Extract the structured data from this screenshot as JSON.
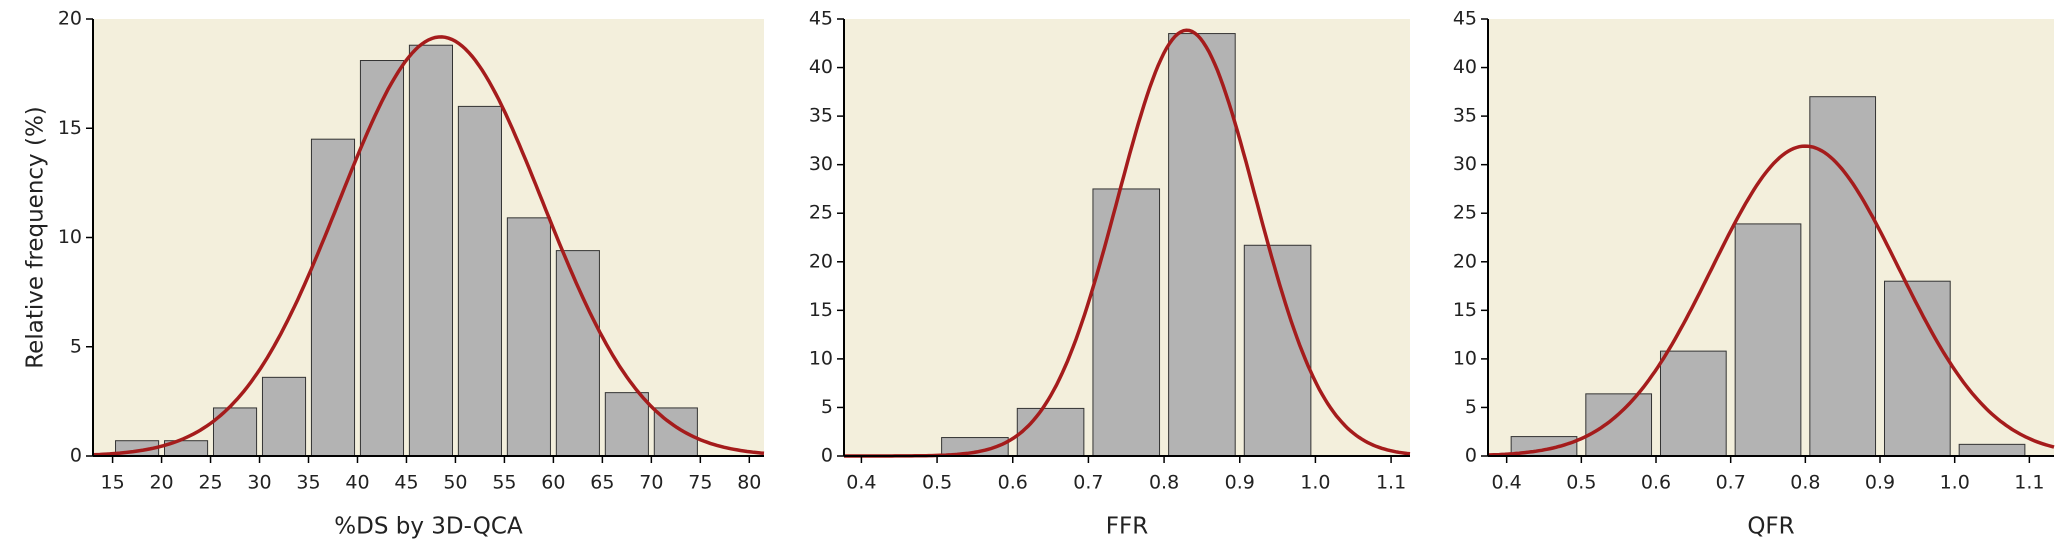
{
  "chart_data": [
    {
      "type": "histogram",
      "y_label": "Relative frequency (%)",
      "x_label": "%DS by 3D-QCA",
      "bins": [
        15,
        20,
        25,
        30,
        35,
        40,
        45,
        50,
        55,
        60,
        65,
        70,
        75
      ],
      "values": [
        0.7,
        0.7,
        2.2,
        3.6,
        14.5,
        18.1,
        18.8,
        16.0,
        10.9,
        9.4,
        2.9,
        2.2
      ],
      "color": "#b3b3b3",
      "fit": {
        "mean": 48.5,
        "sd": 10.4,
        "color": "#a51c1c"
      },
      "xlim": [
        13,
        81.5
      ],
      "xticks": [
        15,
        20,
        25,
        30,
        35,
        40,
        45,
        50,
        55,
        60,
        65,
        70,
        75,
        80
      ],
      "ylim": [
        0,
        20
      ],
      "yticks": [
        0,
        5,
        10,
        15,
        20
      ]
    },
    {
      "type": "histogram",
      "x_label": "FFR",
      "bins": [
        0.5,
        0.6,
        0.7,
        0.8,
        0.9,
        1.0
      ],
      "values": [
        1.9,
        4.9,
        27.5,
        43.5,
        21.7
      ],
      "color": "#b3b3b3",
      "fit": {
        "mean": 0.83,
        "sd": 0.091,
        "color": "#a51c1c"
      },
      "xlim": [
        0.377,
        1.125
      ],
      "xticks": [
        0.4,
        0.5,
        0.6,
        0.7,
        0.8,
        0.9,
        {
          "value": 1,
          "label": "1.0"
        },
        1.1
      ],
      "ylim": [
        0,
        45
      ],
      "yticks": [
        0,
        5,
        10,
        15,
        20,
        25,
        30,
        35,
        40,
        45
      ]
    },
    {
      "type": "histogram",
      "x_label": "QFR",
      "bins": [
        0.4,
        0.5,
        0.6,
        0.7,
        0.8,
        0.9,
        1.0,
        1.1
      ],
      "values": [
        2.0,
        6.4,
        10.8,
        23.9,
        37.0,
        18.0,
        1.2
      ],
      "color": "#b3b3b3",
      "fit": {
        "mean": 0.8,
        "sd": 0.125,
        "color": "#a51c1c"
      },
      "xlim": [
        0.375,
        1.133
      ],
      "xticks": [
        0.4,
        0.5,
        0.6,
        0.7,
        0.8,
        0.9,
        {
          "value": 1,
          "label": "1.0"
        },
        1.1
      ],
      "ylim": [
        0,
        45
      ],
      "yticks": [
        0,
        5,
        10,
        15,
        20,
        25,
        30,
        35,
        40,
        45
      ]
    }
  ]
}
